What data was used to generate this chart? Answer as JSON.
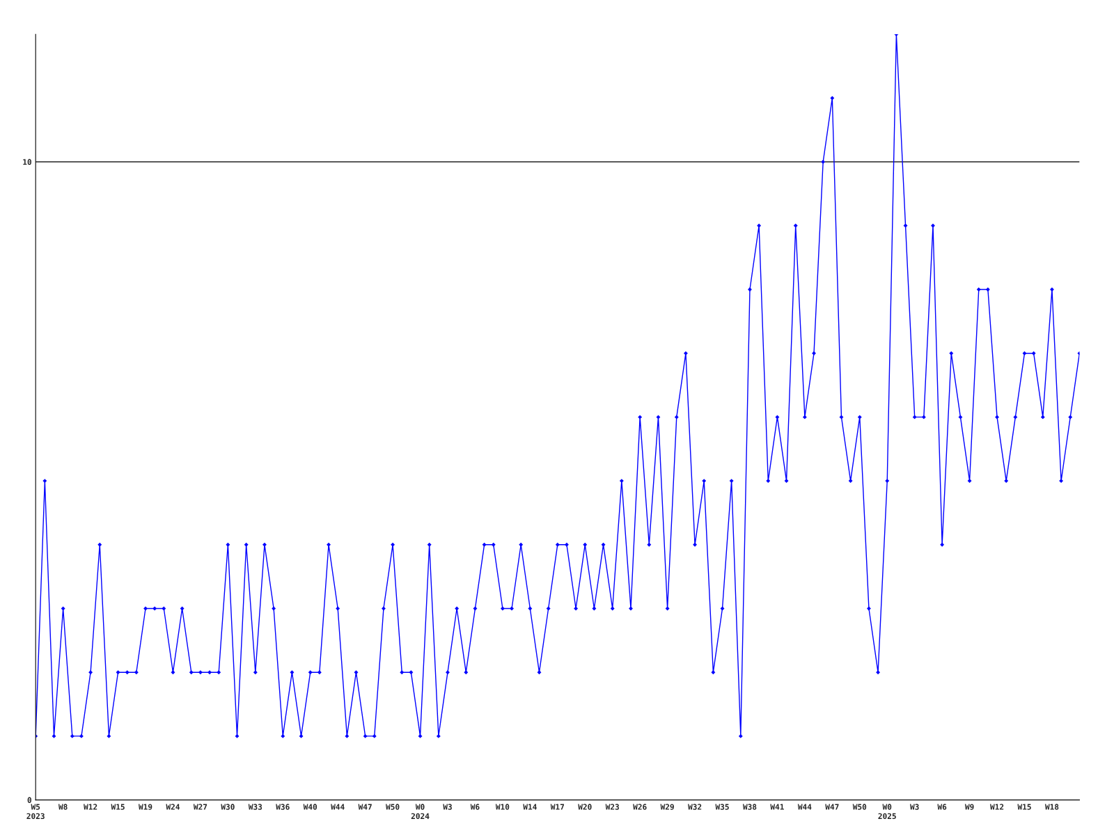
{
  "chart_data": {
    "type": "line",
    "categories": [
      "W5\n2023",
      null,
      null,
      "W8",
      null,
      null,
      "W12",
      null,
      null,
      "W15",
      null,
      null,
      "W19",
      null,
      null,
      "W24",
      null,
      null,
      "W27",
      null,
      null,
      "W30",
      null,
      null,
      "W33",
      null,
      null,
      "W36",
      null,
      null,
      "W40",
      null,
      null,
      "W44",
      null,
      null,
      "W47",
      null,
      null,
      "W50",
      null,
      null,
      "W0\n2024",
      null,
      null,
      "W3",
      null,
      null,
      "W6",
      null,
      null,
      "W10",
      null,
      null,
      "W14",
      null,
      null,
      "W17",
      null,
      null,
      "W20",
      null,
      null,
      "W23",
      null,
      null,
      "W26",
      null,
      null,
      "W29",
      null,
      null,
      "W32",
      null,
      null,
      "W35",
      null,
      null,
      "W38",
      null,
      null,
      "W41",
      null,
      null,
      "W44",
      null,
      null,
      "W47",
      null,
      null,
      "W50",
      null,
      null,
      "W0\n2025",
      null,
      null,
      "W3",
      null,
      null,
      "W6",
      null,
      null,
      "W9",
      null,
      null,
      "W12",
      null,
      null,
      "W15",
      null,
      null,
      "W18",
      null,
      null,
      null
    ],
    "series": [
      {
        "color": "#0000ff",
        "values": [
          1,
          5,
          1,
          3,
          1,
          1,
          2,
          4,
          1,
          2,
          2,
          2,
          3,
          3,
          3,
          2,
          3,
          2,
          2,
          2,
          2,
          4,
          1,
          4,
          2,
          4,
          3,
          1,
          2,
          1,
          2,
          2,
          4,
          3,
          1,
          2,
          1,
          1,
          3,
          4,
          2,
          2,
          1,
          4,
          1,
          2,
          3,
          2,
          3,
          4,
          4,
          3,
          3,
          4,
          3,
          2,
          3,
          4,
          4,
          3,
          4,
          3,
          4,
          3,
          5,
          3,
          6,
          4,
          6,
          3,
          6,
          7,
          4,
          5,
          2,
          3,
          5,
          1,
          8,
          9,
          5,
          6,
          5,
          9,
          6,
          7,
          10,
          11,
          6,
          5,
          6,
          3,
          2,
          5,
          12,
          9,
          6,
          6,
          9,
          4,
          7,
          6,
          5,
          8,
          8,
          6,
          5,
          6,
          7,
          7,
          6,
          8,
          5,
          6,
          7
        ]
      }
    ],
    "ylim": [
      0,
      12
    ],
    "yticks": [
      0,
      10
    ],
    "grid": "y",
    "marker": "diamond",
    "line_style": "solid"
  }
}
